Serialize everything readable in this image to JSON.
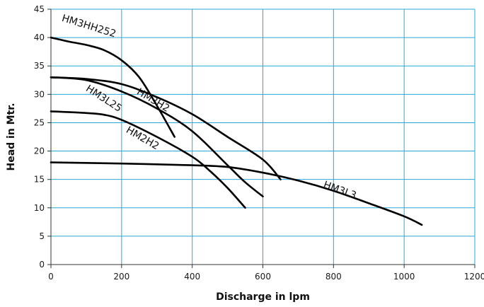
{
  "chart_data": {
    "type": "line",
    "xlabel": "Discharge in lpm",
    "ylabel": "Head in Mtr.",
    "xlim": [
      0,
      1200
    ],
    "ylim": [
      0,
      45
    ],
    "xticks": [
      0,
      200,
      400,
      600,
      800,
      1000,
      1200
    ],
    "yticks": [
      0,
      5,
      10,
      15,
      20,
      25,
      30,
      35,
      40,
      45
    ],
    "grid": true,
    "colors": {
      "grid": "#29a8d8",
      "line": "#000000",
      "axis": "#333333"
    },
    "series": [
      {
        "name": "HM3HH252",
        "points": [
          [
            0,
            40
          ],
          [
            50,
            39.3
          ],
          [
            100,
            38.7
          ],
          [
            150,
            37.8
          ],
          [
            200,
            36
          ],
          [
            250,
            33
          ],
          [
            300,
            28
          ],
          [
            350,
            22.5
          ]
        ]
      },
      {
        "name": "HM3H2",
        "points": [
          [
            0,
            33
          ],
          [
            100,
            32.7
          ],
          [
            200,
            31.8
          ],
          [
            300,
            29.5
          ],
          [
            400,
            26.5
          ],
          [
            500,
            22.5
          ],
          [
            600,
            18.5
          ],
          [
            650,
            15
          ]
        ]
      },
      {
        "name": "HM3L25",
        "points": [
          [
            0,
            33
          ],
          [
            100,
            32.5
          ],
          [
            200,
            30.5
          ],
          [
            300,
            27.5
          ],
          [
            400,
            23.5
          ],
          [
            500,
            17.5
          ],
          [
            550,
            14.5
          ],
          [
            600,
            12
          ]
        ]
      },
      {
        "name": "HM2H2",
        "points": [
          [
            0,
            27
          ],
          [
            100,
            26.7
          ],
          [
            150,
            26.4
          ],
          [
            200,
            25.5
          ],
          [
            300,
            22.5
          ],
          [
            400,
            19
          ],
          [
            450,
            16.5
          ],
          [
            500,
            13.5
          ],
          [
            550,
            10
          ]
        ]
      },
      {
        "name": "HM3L3",
        "points": [
          [
            0,
            18
          ],
          [
            200,
            17.8
          ],
          [
            400,
            17.5
          ],
          [
            500,
            17.2
          ],
          [
            600,
            16.2
          ],
          [
            700,
            14.8
          ],
          [
            800,
            13
          ],
          [
            900,
            10.8
          ],
          [
            1000,
            8.5
          ],
          [
            1050,
            7
          ]
        ]
      }
    ],
    "labels": [
      {
        "series": "HM3HH252",
        "text": "HM3HH252",
        "x": 105,
        "y": 41.5,
        "rotate": 17
      },
      {
        "series": "HM3H2",
        "text": "HM3H2",
        "x": 285,
        "y": 28.5,
        "rotate": 31
      },
      {
        "series": "HM3L25",
        "text": "HM3L25",
        "x": 145,
        "y": 28.8,
        "rotate": 33
      },
      {
        "series": "HM2H2",
        "text": "HM2H2",
        "x": 255,
        "y": 21.8,
        "rotate": 30
      },
      {
        "series": "HM3L3",
        "text": "HM3L3",
        "x": 815,
        "y": 12.6,
        "rotate": 20
      }
    ]
  }
}
